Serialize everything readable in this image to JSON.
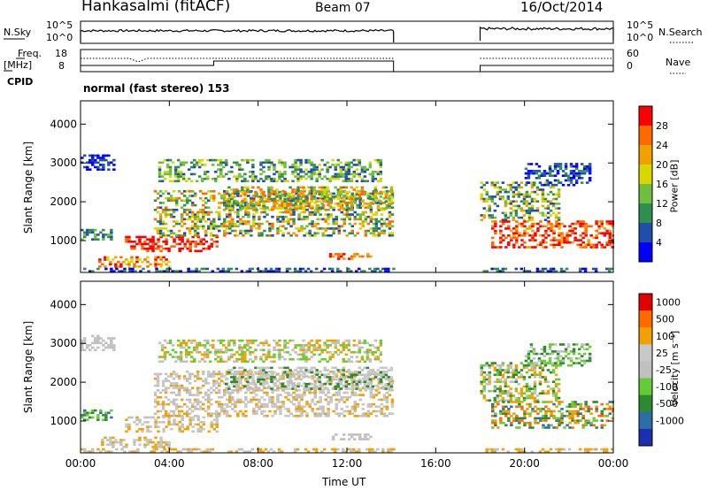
{
  "header": {
    "station": "Hankasalmi (fitACF)",
    "beam": "Beam 07",
    "date": "16/Oct/2014"
  },
  "aux_panels": {
    "nsky_label": "N.Sky",
    "nsearch_label": "N.Search",
    "freq_label_line1": "Freq.",
    "freq_label_line2": "[MHz]",
    "nave_label": "Nave",
    "cpid_label": "CPID",
    "cpid_text": "normal (fast stereo) 153",
    "nsky_ticks": [
      "10^5",
      "10^0"
    ],
    "nsearch_ticks": [
      "10^5",
      "10^0"
    ],
    "freq_ticks": [
      "18",
      "8"
    ],
    "nave_ticks": [
      "60",
      "0"
    ]
  },
  "colors": {
    "power": [
      "#0000ff",
      "#1f4fa8",
      "#2f8f4f",
      "#6fbf3f",
      "#d8d800",
      "#f0a000",
      "#ff6a00",
      "#ff0000"
    ],
    "velocity": [
      "#1c2fb0",
      "#2a6fa8",
      "#2f8a2f",
      "#66cc33",
      "#c0c0c0",
      "#c8c8c8",
      "#f0a000",
      "#ff6a00",
      "#e00000"
    ]
  },
  "chart_data": [
    {
      "type": "heatmap",
      "title": "",
      "xlabel": "Time UT",
      "ylabel": "Slant Range [km]",
      "x_ticks": [
        "00:00",
        "04:00",
        "08:00",
        "12:00",
        "16:00",
        "20:00",
        "00:00"
      ],
      "y_ticks": [
        "1000",
        "2000",
        "3000",
        "4000"
      ],
      "xlim_hours": [
        0,
        24
      ],
      "ylim_km": [
        180,
        4600
      ],
      "colorbar_label": "Power [dB]",
      "colorbar_ticks": [
        "4",
        "8",
        "12",
        "16",
        "20",
        "24",
        "28"
      ],
      "data_gaps_hours": [
        [
          14.1,
          18.0
        ]
      ]
    },
    {
      "type": "heatmap",
      "title": "",
      "xlabel": "Time UT",
      "ylabel": "Slant Range [km]",
      "x_ticks": [
        "00:00",
        "04:00",
        "08:00",
        "12:00",
        "16:00",
        "20:00",
        "00:00"
      ],
      "y_ticks": [
        "1000",
        "2000",
        "3000",
        "4000"
      ],
      "xlim_hours": [
        0,
        24
      ],
      "ylim_km": [
        180,
        4600
      ],
      "colorbar_label": "Velocity [m s⁻¹]",
      "colorbar_ticks": [
        "1000",
        "500",
        "100",
        "25",
        "-25",
        "-100",
        "-500",
        "-1000"
      ],
      "data_gaps_hours": [
        [
          14.1,
          18.0
        ]
      ]
    }
  ]
}
